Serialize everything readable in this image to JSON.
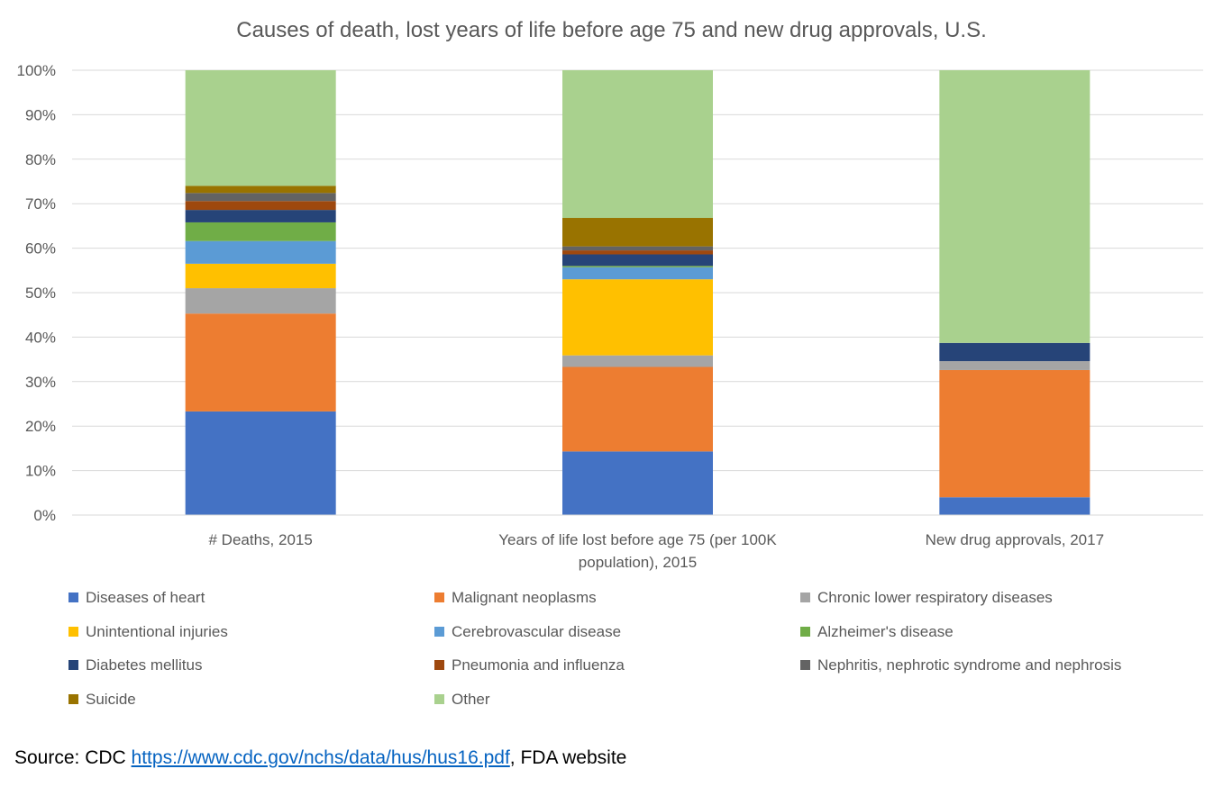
{
  "chart_data": {
    "type": "bar",
    "stacked": true,
    "title": "Causes of death, lost years of life before age 75 and new drug approvals, U.S.",
    "xlabel": "",
    "ylabel": "",
    "ylim": [
      0,
      100
    ],
    "y_ticks": [
      "0%",
      "10%",
      "20%",
      "30%",
      "40%",
      "50%",
      "60%",
      "70%",
      "80%",
      "90%",
      "100%"
    ],
    "grid": true,
    "legend_position": "bottom",
    "categories": [
      "# Deaths, 2015",
      "Years of life lost before age 75 (per 100K population), 2015",
      "New drug approvals, 2017"
    ],
    "series": [
      {
        "name": "Diseases of heart",
        "color": "#4472c4",
        "values": [
          23.3,
          14.3,
          4.0
        ]
      },
      {
        "name": "Malignant neoplasms",
        "color": "#ed7d31",
        "values": [
          22.0,
          19.0,
          28.6
        ]
      },
      {
        "name": "Chronic lower respiratory diseases",
        "color": "#a5a5a5",
        "values": [
          5.7,
          2.6,
          2.0
        ]
      },
      {
        "name": "Unintentional injuries",
        "color": "#ffc000",
        "values": [
          5.5,
          17.1,
          0.0
        ]
      },
      {
        "name": "Cerebrovascular disease",
        "color": "#5b9bd5",
        "values": [
          5.1,
          2.7,
          0.0
        ]
      },
      {
        "name": "Alzheimer's disease",
        "color": "#70ad47",
        "values": [
          4.2,
          0.3,
          0.0
        ]
      },
      {
        "name": "Diabetes mellitus",
        "color": "#264478",
        "values": [
          2.8,
          2.6,
          4.1
        ]
      },
      {
        "name": "Pneumonia and influenza",
        "color": "#9e480e",
        "values": [
          2.0,
          0.9,
          0.0
        ]
      },
      {
        "name": "Nephritis, nephrotic syndrome and nephrosis",
        "color": "#636363",
        "values": [
          1.8,
          0.9,
          0.0
        ]
      },
      {
        "name": "Suicide",
        "color": "#997300",
        "values": [
          1.6,
          6.4,
          0.0
        ]
      },
      {
        "name": "Other",
        "color": "#a9d18e",
        "values": [
          26.0,
          33.2,
          61.3
        ]
      }
    ]
  },
  "source": {
    "prefix": "Source: CDC ",
    "link_text": "https://www.cdc.gov/nchs/data/hus/hus16.pdf",
    "suffix": ", FDA website"
  }
}
